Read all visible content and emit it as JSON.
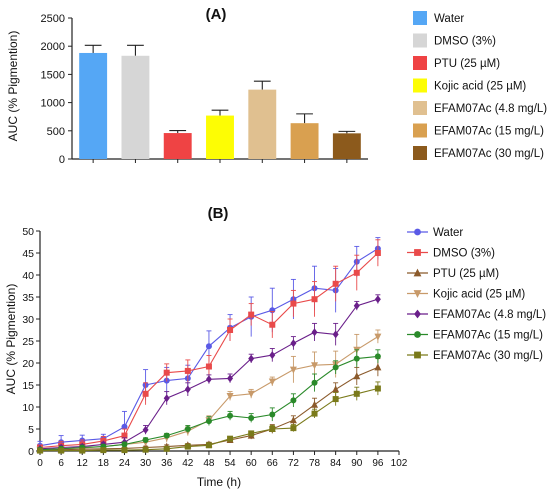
{
  "chart_data": [
    {
      "type": "bar",
      "title": "(A)",
      "ylabel": "AUC (% Pigmention)",
      "xlabel": "",
      "ylim": [
        0,
        2500
      ],
      "yticks": [
        0,
        500,
        1000,
        1500,
        2000,
        2500
      ],
      "legend": "right",
      "categories": [
        "Water",
        "DMSO (3%)",
        "PTU (25 µM)",
        "Kojic acid (25 µM)",
        "EFAM07Ac (4.8 mg/L)",
        "EFAM07Ac (15 mg/L)",
        "EFAM07Ac (30 mg/L)"
      ],
      "values": [
        1880,
        1830,
        460,
        770,
        1230,
        635,
        455
      ],
      "errors": [
        135,
        185,
        45,
        95,
        150,
        165,
        35
      ],
      "colors": [
        "#55a7f5",
        "#d6d6d6",
        "#ef4344",
        "#fdfd04",
        "#e0c090",
        "#d9a050",
        "#8c5a1c"
      ]
    },
    {
      "type": "line",
      "title": "(B)",
      "xlabel": "Time (h)",
      "ylabel": "AUC (% Pigmention)",
      "xlim": [
        0,
        102
      ],
      "ylim": [
        0,
        50
      ],
      "xticks": [
        0,
        6,
        12,
        18,
        24,
        30,
        36,
        42,
        48,
        54,
        60,
        66,
        72,
        78,
        84,
        90,
        96,
        102
      ],
      "yticks": [
        0,
        5,
        10,
        15,
        20,
        25,
        30,
        35,
        40,
        45,
        50
      ],
      "legend": "right",
      "x": [
        0,
        6,
        12,
        18,
        24,
        30,
        36,
        42,
        48,
        54,
        60,
        66,
        72,
        78,
        84,
        90,
        96
      ],
      "series": [
        {
          "name": "Water",
          "color": "#5a5ae6",
          "marker": "circle",
          "values": [
            1.2,
            2.0,
            2.4,
            2.8,
            5.5,
            15.0,
            16.0,
            16.5,
            23.8,
            28.0,
            30.5,
            32.0,
            34.5,
            37.0,
            36.5,
            43.0,
            46.0
          ],
          "errors": [
            1.0,
            1.5,
            1.2,
            1.0,
            3.5,
            3.5,
            3.0,
            3.0,
            3.5,
            3.0,
            4.5,
            5.0,
            4.5,
            5.0,
            5.0,
            3.5,
            2.5
          ]
        },
        {
          "name": "DMSO (3%)",
          "color": "#e94a4a",
          "marker": "square",
          "values": [
            0.8,
            1.2,
            1.5,
            2.3,
            3.5,
            13.0,
            17.8,
            18.2,
            19.2,
            27.5,
            31.0,
            28.7,
            33.5,
            34.5,
            38.0,
            40.5,
            45.0
          ],
          "errors": [
            0.5,
            1.0,
            1.0,
            1.0,
            1.5,
            2.5,
            2.0,
            2.5,
            2.5,
            2.5,
            2.5,
            3.0,
            3.0,
            4.0,
            4.0,
            4.0,
            3.0
          ]
        },
        {
          "name": "PTU (25 µM)",
          "color": "#8b5a2b",
          "marker": "triangle",
          "values": [
            0.2,
            0.3,
            0.4,
            0.5,
            0.6,
            0.8,
            1.0,
            1.3,
            1.5,
            2.5,
            3.5,
            5.0,
            7.0,
            10.5,
            14.0,
            17.0,
            19.0
          ],
          "errors": [
            0.2,
            0.2,
            0.3,
            0.3,
            0.3,
            0.3,
            0.4,
            0.4,
            0.5,
            0.5,
            0.8,
            1.0,
            1.0,
            1.5,
            1.5,
            2.0,
            2.0
          ]
        },
        {
          "name": "Kojic acid (25 µM)",
          "color": "#c89a6a",
          "marker": "triangle-down",
          "values": [
            0.3,
            0.5,
            0.7,
            1.0,
            1.5,
            2.0,
            3.0,
            4.5,
            7.0,
            12.5,
            13.0,
            15.8,
            18.5,
            19.5,
            19.7,
            23.0,
            26.0
          ],
          "errors": [
            0.2,
            0.3,
            0.4,
            0.5,
            0.6,
            0.8,
            1.0,
            1.0,
            1.0,
            1.0,
            1.0,
            1.0,
            3.0,
            3.0,
            3.0,
            3.5,
            1.5
          ]
        },
        {
          "name": "EFAM07Ac (4.8 mg/L)",
          "color": "#6a1f8a",
          "marker": "diamond",
          "values": [
            0.5,
            0.8,
            1.0,
            1.5,
            2.0,
            4.8,
            12.0,
            14.0,
            16.3,
            16.5,
            21.0,
            21.8,
            24.5,
            27.0,
            26.5,
            33.0,
            34.5
          ],
          "errors": [
            0.3,
            0.5,
            0.5,
            0.5,
            1.0,
            1.0,
            1.5,
            1.5,
            1.0,
            1.0,
            1.0,
            1.5,
            1.5,
            2.0,
            2.5,
            1.0,
            1.0
          ]
        },
        {
          "name": "EFAM07Ac (15 mg/L)",
          "color": "#2a8a2a",
          "marker": "circle",
          "values": [
            0.3,
            0.5,
            0.8,
            1.0,
            1.5,
            2.5,
            3.5,
            5.0,
            6.8,
            8.0,
            7.5,
            8.3,
            11.5,
            15.5,
            19.0,
            21.0,
            21.5
          ],
          "errors": [
            0.2,
            0.3,
            0.4,
            0.5,
            0.5,
            0.5,
            0.5,
            0.8,
            1.0,
            1.0,
            1.0,
            1.5,
            1.5,
            2.0,
            1.5,
            2.0,
            1.5
          ]
        },
        {
          "name": "EFAM07Ac (30 mg/L)",
          "color": "#7a7a1a",
          "marker": "square",
          "values": [
            0.1,
            0.1,
            0.1,
            0.2,
            0.2,
            0.3,
            0.5,
            1.0,
            1.3,
            2.8,
            4.0,
            5.0,
            5.2,
            8.5,
            11.8,
            13.0,
            14.2
          ],
          "errors": [
            0.1,
            0.1,
            0.1,
            0.1,
            0.1,
            0.2,
            0.2,
            0.3,
            0.3,
            0.5,
            0.5,
            0.8,
            0.8,
            1.0,
            1.5,
            1.5,
            1.5
          ]
        }
      ]
    }
  ]
}
